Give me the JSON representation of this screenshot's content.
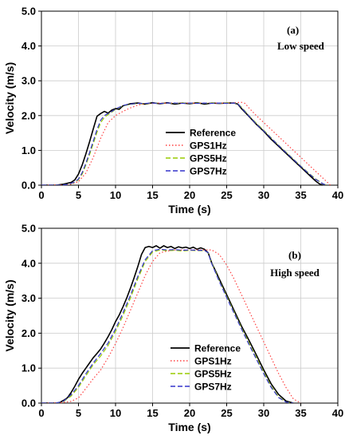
{
  "chart_data": [
    {
      "type": "line",
      "panel_label": "(a)",
      "annotation": "Low speed",
      "xlabel": "Time (s)",
      "ylabel": "Velocity (m/s)",
      "xlim": [
        0,
        40
      ],
      "ylim": [
        0,
        5
      ],
      "xticks": [
        "0",
        "5",
        "10",
        "15",
        "20",
        "25",
        "30",
        "35",
        "40"
      ],
      "yticks": [
        "0.0",
        "1.0",
        "2.0",
        "3.0",
        "4.0",
        "5.0"
      ],
      "grid": true,
      "legend_placement": "center-right",
      "series": [
        {
          "name": "Reference",
          "color": "#000000",
          "dash": "solid",
          "x": [
            0,
            2,
            3,
            4,
            4.5,
            5,
            5.5,
            6,
            6.5,
            7,
            7.5,
            8,
            8.5,
            9,
            9.5,
            10,
            10.5,
            11,
            12,
            13,
            14,
            15,
            16,
            17,
            18,
            19,
            20,
            21,
            22,
            23,
            24,
            25,
            26,
            26.5,
            27,
            28,
            29,
            30,
            31,
            32,
            33,
            34,
            35,
            36,
            37,
            37.5,
            38
          ],
          "y": [
            0,
            0,
            0.03,
            0.08,
            0.15,
            0.32,
            0.58,
            0.9,
            1.25,
            1.62,
            1.98,
            2.06,
            2.12,
            2.07,
            2.16,
            2.2,
            2.18,
            2.28,
            2.34,
            2.36,
            2.33,
            2.37,
            2.34,
            2.37,
            2.33,
            2.36,
            2.34,
            2.37,
            2.33,
            2.36,
            2.35,
            2.36,
            2.36,
            2.33,
            2.2,
            1.98,
            1.75,
            1.55,
            1.32,
            1.12,
            0.92,
            0.72,
            0.52,
            0.32,
            0.12,
            0.04,
            0
          ]
        },
        {
          "name": "GPS1Hz",
          "color": "#ff4040",
          "dash": "dotted",
          "x": [
            0,
            3,
            4,
            5,
            6,
            7,
            8,
            9,
            10,
            11,
            12,
            13,
            14,
            15,
            16,
            17,
            18,
            19,
            20,
            21,
            22,
            23,
            24,
            25,
            26,
            27,
            27.5,
            28,
            29,
            30,
            31,
            32,
            33,
            34,
            35,
            36,
            37,
            38,
            39
          ],
          "y": [
            0,
            0,
            0.03,
            0.1,
            0.35,
            0.8,
            1.35,
            1.8,
            2.0,
            2.12,
            2.22,
            2.3,
            2.34,
            2.35,
            2.36,
            2.36,
            2.36,
            2.36,
            2.36,
            2.36,
            2.36,
            2.36,
            2.36,
            2.36,
            2.37,
            2.38,
            2.35,
            2.22,
            2.0,
            1.8,
            1.6,
            1.4,
            1.2,
            1.0,
            0.8,
            0.6,
            0.4,
            0.2,
            0
          ]
        },
        {
          "name": "GPS5Hz",
          "color": "#99cc00",
          "dash": "dashed",
          "x": [
            0,
            2.5,
            3.5,
            4.5,
            5,
            5.5,
            6,
            6.5,
            7,
            7.5,
            8,
            8.5,
            9,
            9.5,
            10,
            11,
            12,
            13,
            14,
            15,
            16,
            17,
            18,
            19,
            20,
            21,
            22,
            23,
            24,
            25,
            26,
            26.5,
            27,
            28,
            29,
            30,
            31,
            32,
            33,
            34,
            35,
            36,
            37,
            38,
            38.5
          ],
          "y": [
            0,
            0,
            0.02,
            0.08,
            0.16,
            0.32,
            0.58,
            0.88,
            1.2,
            1.52,
            1.8,
            1.95,
            2.03,
            2.1,
            2.18,
            2.28,
            2.32,
            2.35,
            2.34,
            2.36,
            2.35,
            2.36,
            2.35,
            2.36,
            2.35,
            2.36,
            2.35,
            2.36,
            2.35,
            2.36,
            2.36,
            2.34,
            2.24,
            2.0,
            1.78,
            1.58,
            1.36,
            1.15,
            0.95,
            0.75,
            0.55,
            0.36,
            0.18,
            0.04,
            0
          ]
        },
        {
          "name": "GPS7Hz",
          "color": "#3333cc",
          "dash": "dashed",
          "x": [
            0,
            2.5,
            3.5,
            4.5,
            5,
            5.5,
            6,
            6.5,
            7,
            7.5,
            8,
            8.5,
            9,
            9.5,
            10,
            11,
            12,
            13,
            14,
            15,
            16,
            17,
            18,
            19,
            20,
            21,
            22,
            23,
            24,
            25,
            26,
            26.5,
            27,
            28,
            29,
            30,
            31,
            32,
            33,
            34,
            35,
            36,
            37,
            38,
            38.5
          ],
          "y": [
            0,
            0,
            0.02,
            0.09,
            0.18,
            0.36,
            0.63,
            0.94,
            1.27,
            1.6,
            1.87,
            2.0,
            2.06,
            2.12,
            2.19,
            2.29,
            2.33,
            2.35,
            2.35,
            2.36,
            2.35,
            2.36,
            2.36,
            2.35,
            2.36,
            2.35,
            2.36,
            2.35,
            2.36,
            2.35,
            2.36,
            2.34,
            2.22,
            1.99,
            1.76,
            1.56,
            1.35,
            1.14,
            0.94,
            0.74,
            0.54,
            0.35,
            0.17,
            0.04,
            0
          ]
        }
      ]
    },
    {
      "type": "line",
      "panel_label": "(b)",
      "annotation": "High speed",
      "xlabel": "Time (s)",
      "ylabel": "Velocity (m/s)",
      "xlim": [
        0,
        40
      ],
      "ylim": [
        0,
        5
      ],
      "xticks": [
        "0",
        "5",
        "10",
        "15",
        "20",
        "25",
        "30",
        "35",
        "40"
      ],
      "yticks": [
        "0.0",
        "1.0",
        "2.0",
        "3.0",
        "4.0",
        "5.0"
      ],
      "grid": true,
      "legend_placement": "bottom-center",
      "series": [
        {
          "name": "Reference",
          "color": "#000000",
          "dash": "solid",
          "x": [
            0,
            2,
            2.5,
            3,
            3.5,
            4,
            4.5,
            5,
            5.5,
            6,
            6.5,
            7,
            7.5,
            8,
            8.5,
            9,
            9.5,
            10,
            10.5,
            11,
            11.5,
            12,
            12.5,
            13,
            13.5,
            14,
            14.5,
            15,
            15.5,
            16,
            16.5,
            17,
            17.5,
            18,
            18.5,
            19,
            19.5,
            20,
            20.5,
            21,
            21.5,
            22,
            22.5,
            23,
            23.5,
            24,
            25,
            26,
            27,
            28,
            29,
            30,
            31,
            32,
            33,
            34
          ],
          "y": [
            0,
            0,
            0.02,
            0.08,
            0.15,
            0.3,
            0.48,
            0.68,
            0.85,
            1.0,
            1.15,
            1.3,
            1.42,
            1.55,
            1.72,
            1.9,
            2.1,
            2.33,
            2.52,
            2.75,
            3.0,
            3.28,
            3.58,
            3.9,
            4.25,
            4.45,
            4.48,
            4.45,
            4.5,
            4.43,
            4.5,
            4.45,
            4.48,
            4.42,
            4.47,
            4.44,
            4.46,
            4.42,
            4.46,
            4.4,
            4.44,
            4.4,
            4.3,
            4.0,
            3.78,
            3.55,
            3.1,
            2.65,
            2.2,
            1.8,
            1.38,
            0.95,
            0.55,
            0.25,
            0.06,
            0
          ]
        },
        {
          "name": "GPS1Hz",
          "color": "#ff4040",
          "dash": "dotted",
          "x": [
            0,
            2,
            3,
            4,
            5,
            6,
            7,
            8,
            9,
            10,
            11,
            12,
            13,
            14,
            15,
            16,
            17,
            18,
            19,
            20,
            21,
            22,
            23,
            24,
            25,
            26,
            27,
            28,
            29,
            30,
            31,
            32,
            33,
            34,
            35
          ],
          "y": [
            0,
            0,
            0.02,
            0.05,
            0.15,
            0.42,
            0.7,
            0.95,
            1.3,
            1.7,
            2.15,
            2.65,
            3.15,
            3.65,
            4.05,
            4.3,
            4.35,
            4.38,
            4.38,
            4.38,
            4.38,
            4.38,
            4.38,
            4.25,
            3.95,
            3.55,
            3.1,
            2.65,
            2.2,
            1.75,
            1.3,
            0.85,
            0.45,
            0.12,
            0
          ]
        },
        {
          "name": "GPS5Hz",
          "color": "#99cc00",
          "dash": "dashed",
          "x": [
            0,
            2,
            3,
            4,
            5,
            6,
            7,
            8,
            9,
            10,
            11,
            12,
            13,
            14,
            15,
            16,
            17,
            18,
            19,
            20,
            21,
            22,
            22.5,
            23,
            24,
            25,
            26,
            27,
            28,
            29,
            30,
            31,
            32,
            33,
            33.5,
            34
          ],
          "y": [
            0,
            0,
            0.05,
            0.2,
            0.45,
            0.78,
            1.1,
            1.35,
            1.65,
            2.05,
            2.5,
            3.0,
            3.55,
            4.05,
            4.32,
            4.38,
            4.36,
            4.37,
            4.35,
            4.37,
            4.36,
            4.36,
            4.3,
            4.0,
            3.5,
            3.05,
            2.6,
            2.15,
            1.72,
            1.3,
            0.88,
            0.48,
            0.18,
            0.03,
            0.01,
            0
          ]
        },
        {
          "name": "GPS7Hz",
          "color": "#3333cc",
          "dash": "dashed",
          "x": [
            0,
            2,
            3,
            4,
            5,
            6,
            7,
            8,
            9,
            10,
            11,
            12,
            13,
            14,
            15,
            16,
            17,
            18,
            19,
            20,
            21,
            22,
            22.5,
            23,
            24,
            25,
            26,
            27,
            28,
            29,
            30,
            31,
            32,
            33,
            33.5,
            34
          ],
          "y": [
            0,
            0,
            0.06,
            0.24,
            0.5,
            0.84,
            1.15,
            1.42,
            1.72,
            2.12,
            2.58,
            3.08,
            3.62,
            4.1,
            4.36,
            4.4,
            4.38,
            4.39,
            4.37,
            4.38,
            4.37,
            4.37,
            4.3,
            3.98,
            3.48,
            3.02,
            2.57,
            2.12,
            1.68,
            1.26,
            0.84,
            0.45,
            0.16,
            0.03,
            0.01,
            0
          ]
        }
      ]
    }
  ]
}
